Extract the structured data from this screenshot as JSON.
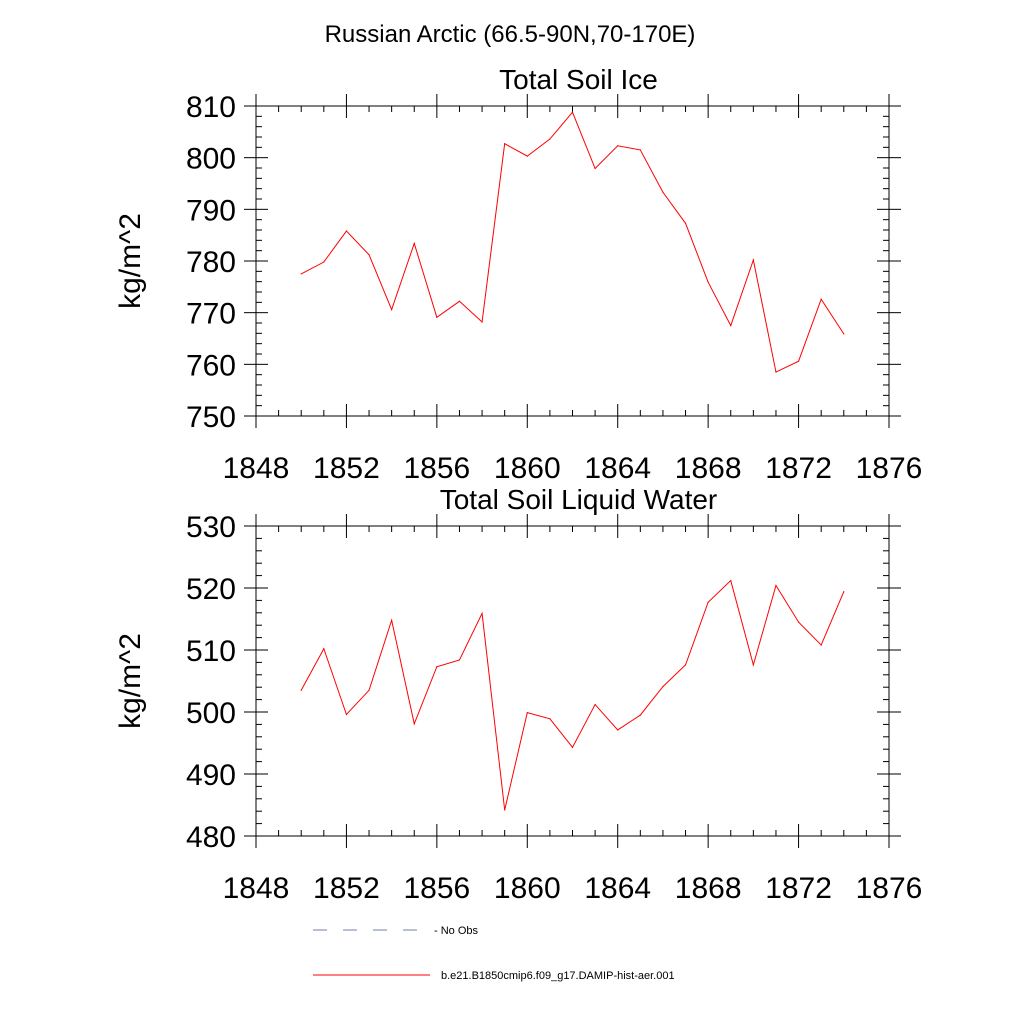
{
  "figure": {
    "main_title": "Russian Arctic (66.5-90N,70-170E)"
  },
  "chart_data": [
    {
      "type": "line",
      "title": "Total Soil Ice",
      "xlabel": "",
      "ylabel": "kg/m^2",
      "xlim": [
        1848,
        1876
      ],
      "ylim": [
        750,
        810
      ],
      "x_ticks": [
        1848,
        1852,
        1856,
        1860,
        1864,
        1868,
        1872,
        1876
      ],
      "y_ticks": [
        750,
        760,
        770,
        780,
        790,
        800,
        810
      ],
      "x": [
        1850,
        1851,
        1852,
        1853,
        1854,
        1855,
        1856,
        1857,
        1858,
        1859,
        1860,
        1861,
        1862,
        1863,
        1864,
        1865,
        1866,
        1867,
        1868,
        1869,
        1870,
        1871,
        1872,
        1873,
        1874
      ],
      "series": [
        {
          "name": "b.e21.B1850cmip6.f09_g17.DAMIP-hist-aer.001",
          "color": "#ff0000",
          "values": [
            777.5,
            779.8,
            785.8,
            781.2,
            770.6,
            783.4,
            769.1,
            772.2,
            768.2,
            802.7,
            800.3,
            803.6,
            808.8,
            797.9,
            802.3,
            801.5,
            793.3,
            787.3,
            775.9,
            767.5,
            780.2,
            758.5,
            760.6,
            772.6,
            765.9
          ]
        }
      ],
      "grid": false
    },
    {
      "type": "line",
      "title": "Total Soil Liquid Water",
      "xlabel": "",
      "ylabel": "kg/m^2",
      "xlim": [
        1848,
        1876
      ],
      "ylim": [
        480,
        530
      ],
      "x_ticks": [
        1848,
        1852,
        1856,
        1860,
        1864,
        1868,
        1872,
        1876
      ],
      "y_ticks": [
        480,
        490,
        500,
        510,
        520,
        530
      ],
      "x": [
        1850,
        1851,
        1852,
        1853,
        1854,
        1855,
        1856,
        1857,
        1858,
        1859,
        1860,
        1861,
        1862,
        1863,
        1864,
        1865,
        1866,
        1867,
        1868,
        1869,
        1870,
        1871,
        1872,
        1873,
        1874
      ],
      "series": [
        {
          "name": "b.e21.B1850cmip6.f09_g17.DAMIP-hist-aer.001",
          "color": "#ff0000",
          "values": [
            503.5,
            510.2,
            499.6,
            503.5,
            514.8,
            498.1,
            507.3,
            508.4,
            515.9,
            484.2,
            499.9,
            498.9,
            494.3,
            501.2,
            497.1,
            499.5,
            504.1,
            507.6,
            517.7,
            521.2,
            507.6,
            520.4,
            514.5,
            510.8,
            519.4
          ]
        }
      ],
      "grid": false
    }
  ],
  "legend": {
    "placement": "bottom",
    "entries": [
      {
        "label": "- No Obs",
        "color": "#6f7fa6",
        "style": "dashed"
      },
      {
        "label": "b.e21.B1850cmip6.f09_g17.DAMIP-hist-aer.001",
        "color": "#ff0000",
        "style": "solid"
      }
    ]
  }
}
